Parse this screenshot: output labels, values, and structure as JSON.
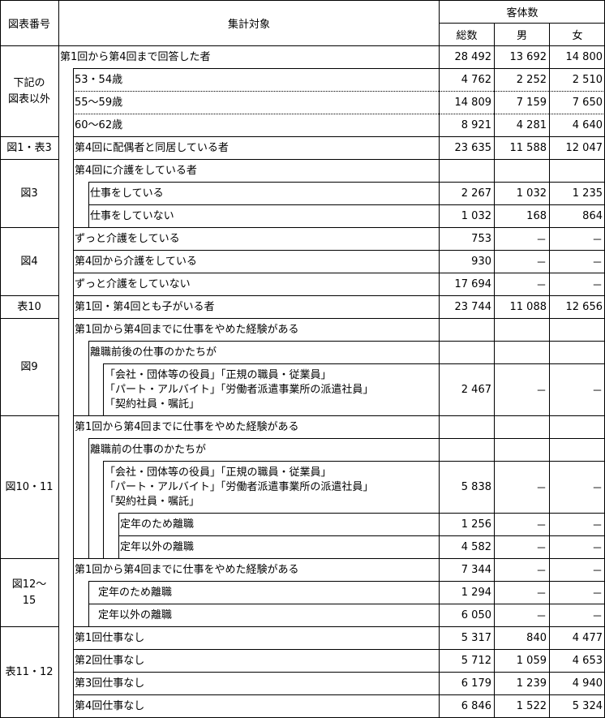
{
  "header": {
    "figure_no": "図表番号",
    "target": "集計対象",
    "count": "客体数",
    "total": "総数",
    "male": "男",
    "female": "女"
  },
  "groups": [
    {
      "label": "下記の\n図表以外",
      "rows": [
        {
          "level": 0,
          "text": [
            "第1回から第4回まで回答した者"
          ],
          "values": [
            "28 492",
            "13 692",
            "14 800"
          ]
        },
        {
          "level": 1,
          "text": [
            "53・54歳"
          ],
          "values": [
            "4 762",
            "2 252",
            "2 510"
          ]
        },
        {
          "level": 1,
          "text": [
            "55～59歳"
          ],
          "values": [
            "14 809",
            "7 159",
            "7 650"
          ],
          "dotted": true
        },
        {
          "level": 1,
          "text": [
            "60～62歳"
          ],
          "values": [
            "8 921",
            "4 281",
            "4 640"
          ],
          "dotted": true
        }
      ]
    },
    {
      "label": "図1・表3",
      "rows": [
        {
          "level": 1,
          "text": [
            "第4回に配偶者と同居している者"
          ],
          "values": [
            "23 635",
            "11 588",
            "12 047"
          ]
        }
      ]
    },
    {
      "label": "図3",
      "rows": [
        {
          "level": 1,
          "text": [
            "第4回に介護をしている者"
          ],
          "values": [
            "",
            "",
            ""
          ]
        },
        {
          "level": 2,
          "text": [
            "仕事をしている"
          ],
          "values": [
            "2 267",
            "1 032",
            "1 235"
          ]
        },
        {
          "level": 2,
          "text": [
            "仕事をしていない"
          ],
          "values": [
            "1 032",
            "168",
            "864"
          ]
        }
      ]
    },
    {
      "label": "図4",
      "rows": [
        {
          "level": 1,
          "text": [
            "ずっと介護をしている"
          ],
          "values": [
            "753",
            "－",
            "－"
          ]
        },
        {
          "level": 1,
          "text": [
            "第4回から介護をしている"
          ],
          "values": [
            "930",
            "－",
            "－"
          ]
        },
        {
          "level": 1,
          "text": [
            "ずっと介護をしていない"
          ],
          "values": [
            "17 694",
            "－",
            "－"
          ]
        }
      ]
    },
    {
      "label": "表10",
      "rows": [
        {
          "level": 1,
          "text": [
            "第1回・第4回とも子がいる者"
          ],
          "values": [
            "23 744",
            "11 088",
            "12 656"
          ]
        }
      ]
    },
    {
      "label": "図9",
      "rows": [
        {
          "level": 1,
          "text": [
            "第1回から第4回までに仕事をやめた経験がある"
          ],
          "values": [
            "",
            "",
            ""
          ]
        },
        {
          "level": 2,
          "text": [
            "離職前後の仕事のかたちが"
          ],
          "values": [
            "",
            "",
            ""
          ]
        },
        {
          "level": 3,
          "text": [
            "「会社・団体等の役員」「正規の職員・従業員」",
            "「パート・アルバイト」「労働者派遣事業所の派遣社員」",
            "「契約社員・嘱託」"
          ],
          "values": [
            "2 467",
            "－",
            "－"
          ]
        }
      ]
    },
    {
      "label": "図10・11",
      "rows": [
        {
          "level": 1,
          "text": [
            "第1回から第4回までに仕事をやめた経験がある"
          ],
          "values": [
            "",
            "",
            ""
          ]
        },
        {
          "level": 2,
          "text": [
            "離職前の仕事のかたちが"
          ],
          "values": [
            "",
            "",
            ""
          ]
        },
        {
          "level": 3,
          "text": [
            "「会社・団体等の役員」「正規の職員・従業員」",
            "「パート・アルバイト」「労働者派遣事業所の派遣社員」",
            "「契約社員・嘱託」"
          ],
          "values": [
            "5 838",
            "－",
            "－"
          ]
        },
        {
          "level": 4,
          "text": [
            "定年のため離職"
          ],
          "values": [
            "1 256",
            "－",
            "－"
          ]
        },
        {
          "level": 4,
          "text": [
            "定年以外の離職"
          ],
          "values": [
            "4 582",
            "－",
            "－"
          ]
        }
      ]
    },
    {
      "label": "図12～\n15",
      "rows": [
        {
          "level": 1,
          "text": [
            "第1回から第4回までに仕事をやめた経験がある"
          ],
          "values": [
            "7 344",
            "－",
            "－"
          ]
        },
        {
          "level": 2,
          "text": [
            "定年のため離職"
          ],
          "values": [
            "1 294",
            "－",
            "－"
          ],
          "pad": true
        },
        {
          "level": 2,
          "text": [
            "定年以外の離職"
          ],
          "values": [
            "6 050",
            "－",
            "－"
          ],
          "pad": true
        }
      ]
    },
    {
      "label": "表11・12",
      "rows": [
        {
          "level": 1,
          "text": [
            "第1回仕事なし"
          ],
          "values": [
            "5 317",
            "840",
            "4 477"
          ]
        },
        {
          "level": 1,
          "text": [
            "第2回仕事なし"
          ],
          "values": [
            "5 712",
            "1 059",
            "4 653"
          ]
        },
        {
          "level": 1,
          "text": [
            "第3回仕事なし"
          ],
          "values": [
            "6 179",
            "1 239",
            "4 940"
          ]
        },
        {
          "level": 1,
          "text": [
            "第4回仕事なし"
          ],
          "values": [
            "6 846",
            "1 522",
            "5 324"
          ]
        }
      ]
    }
  ]
}
